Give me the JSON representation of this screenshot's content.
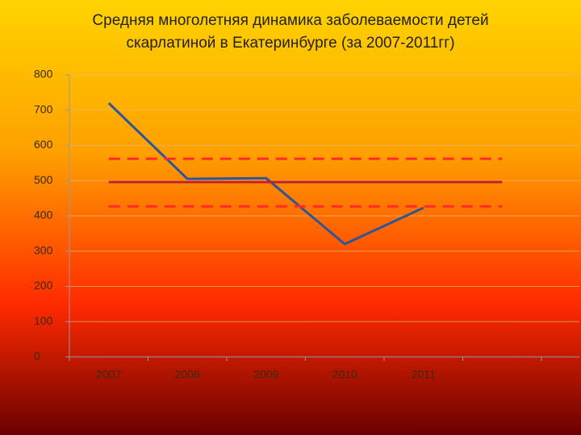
{
  "chart_data": {
    "type": "line",
    "title": [
      "Средняя многолетняя динамика заболеваемости детей",
      "скарлатиной в Екатеринбурге (за 2007-2011гг)"
    ],
    "categories": [
      "2007",
      "2008",
      "2009",
      "2010",
      "2011",
      null
    ],
    "series": [
      {
        "color": "#2e5597",
        "style": "solid",
        "values": [
          720,
          505,
          507,
          320,
          423,
          null
        ]
      },
      {
        "color": "#c0202a",
        "style": "solid",
        "values": [
          496,
          496,
          496,
          496,
          496,
          496
        ]
      },
      {
        "color": "#ff2a2a",
        "style": "dashed",
        "values": [
          562,
          562,
          562,
          562,
          562,
          562
        ]
      },
      {
        "color": "#ff2a2a",
        "style": "dashed",
        "values": [
          427,
          427,
          427,
          427,
          427,
          427
        ]
      }
    ],
    "ylim": [
      0,
      800
    ],
    "yticks": [
      0,
      100,
      200,
      300,
      400,
      500,
      600,
      700,
      800
    ],
    "grid": true
  }
}
